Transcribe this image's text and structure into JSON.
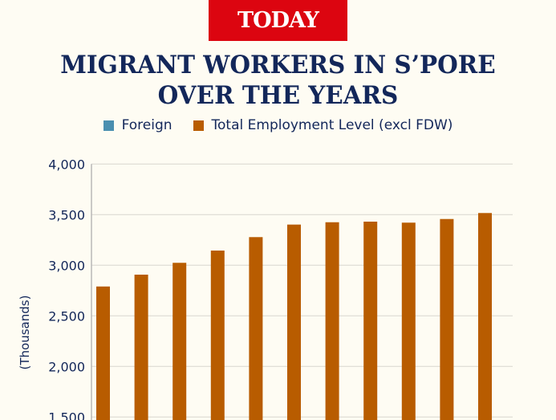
{
  "logo": "TODAY",
  "title_line1": "MIGRANT WORKERS IN S’PORE",
  "title_line2": "OVER THE YEARS",
  "colors": {
    "foreign": "#4a8fb0",
    "total": "#b85c00",
    "axis_text": "#13275a",
    "logo_bg": "#dc0510"
  },
  "chart_data": {
    "type": "bar",
    "title": "MIGRANT WORKERS IN S’PORE OVER THE YEARS",
    "xlabel": "",
    "ylabel": "(Thousands)",
    "ylim": [
      1500,
      4000
    ],
    "yticks": [
      "1,500",
      "2,000",
      "2,500",
      "3,000",
      "3,500",
      "4,000"
    ],
    "ytick_values": [
      1500,
      2000,
      2500,
      3000,
      3500,
      4000
    ],
    "grid": true,
    "legend": [
      "Foreign",
      "Total Employment Level (excl FDW)"
    ],
    "legend_placement": "top",
    "series": [
      {
        "name": "Foreign",
        "values": []
      },
      {
        "name": "Total Employment Level (excl FDW)",
        "values": [
          2790,
          2907,
          3024,
          3145,
          3278,
          3402,
          3425,
          3431,
          3421,
          3457,
          3516
        ]
      }
    ]
  }
}
